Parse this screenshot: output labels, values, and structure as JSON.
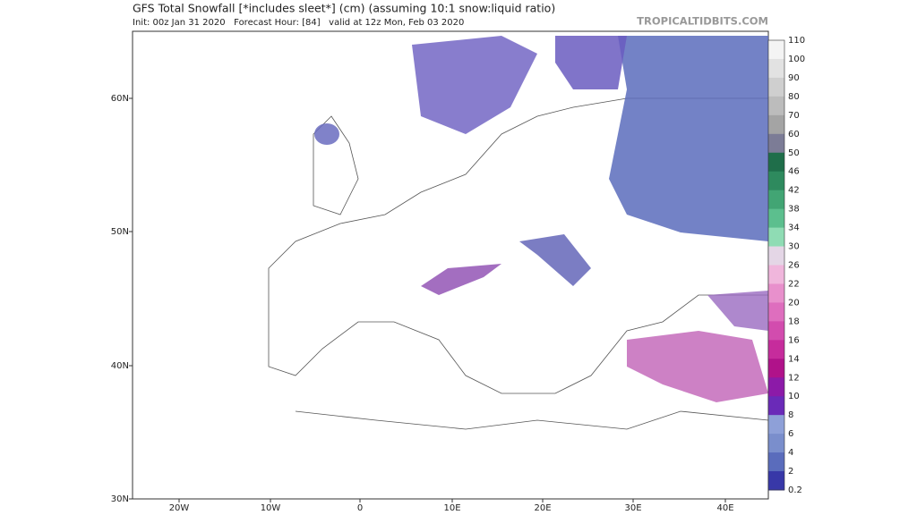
{
  "header": {
    "title": "GFS Total Snowfall [*includes sleet*] (cm) (assuming 10:1 snow:liquid ratio)",
    "subtitle": "Init: 00z Jan 31 2020   Forecast Hour: [84]   valid at 12z Mon, Feb 03 2020",
    "watermark": "TROPICALTIDBITS.COM"
  },
  "map": {
    "lat_labels": [
      "60N",
      "50N",
      "40N",
      "30N"
    ],
    "lon_labels": [
      "20W",
      "10W",
      "0",
      "10E",
      "20E",
      "30E",
      "40E"
    ]
  },
  "colorbar": {
    "labels": [
      110,
      100,
      90,
      80,
      70,
      60,
      50,
      46,
      42,
      38,
      34,
      30,
      26,
      22,
      20,
      18,
      16,
      14,
      12,
      10,
      8,
      6,
      4,
      2,
      0.2
    ],
    "colors": [
      "#f4f4f4",
      "#e2e2e2",
      "#cfcfcf",
      "#bcbcbc",
      "#a4a4a4",
      "#7c7c96",
      "#1f6e4a",
      "#2e8a5e",
      "#42a574",
      "#5cbf8e",
      "#8fdcb4",
      "#e4d6e6",
      "#f0b6dc",
      "#e890cc",
      "#de6ebe",
      "#d24cae",
      "#c62c9c",
      "#b0128a",
      "#8c1aa8",
      "#6a2ab8",
      "#8ea0d8",
      "#7a8ecc",
      "#5a6cbc",
      "#3838a8"
    ]
  }
}
